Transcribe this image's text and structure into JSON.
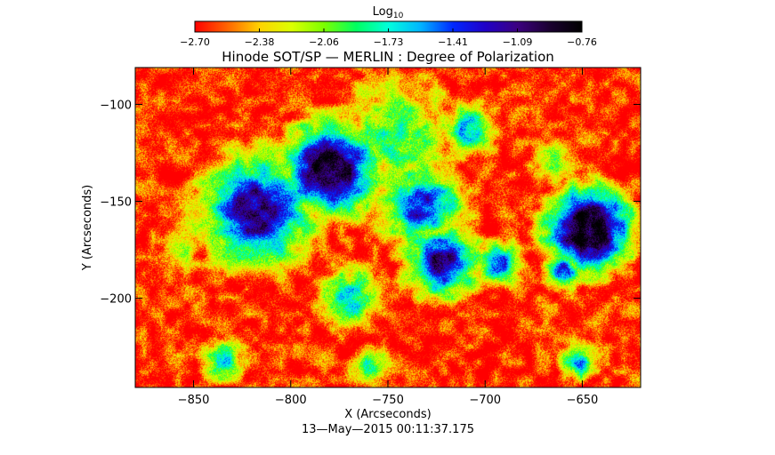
{
  "chart_data": {
    "type": "heatmap",
    "title": "Hinode SOT/SP — MERLIN : Degree of Polarization",
    "xlabel": "X (Arcseconds)",
    "ylabel": "Y (Arcseconds)",
    "timestamp": "13—May—2015 00:11:37.175",
    "xlim": [
      -880,
      -620
    ],
    "ylim": [
      -246,
      -81
    ],
    "xticks": [
      -850,
      -800,
      -750,
      -700,
      -650
    ],
    "yticks": [
      -100,
      -150,
      -200
    ],
    "colorbar": {
      "label": "Log",
      "label_sub": "10",
      "min": -2.7,
      "max": -0.76,
      "tick_labels": [
        "−2.70",
        "−2.38",
        "−2.06",
        "−1.73",
        "−1.41",
        "−1.09",
        "−0.76"
      ],
      "colormap": [
        "#ff0000",
        "#ff6400",
        "#ffd200",
        "#dcff00",
        "#7cff00",
        "#00ff60",
        "#00ffdc",
        "#00b4ff",
        "#0028ff",
        "#2000c8",
        "#3c0080",
        "#1a0030",
        "#000000"
      ]
    },
    "background_level": -2.65,
    "features": [
      {
        "x": -780,
        "y": -133,
        "peak": -0.8,
        "core": 8,
        "halo": 26
      },
      {
        "x": -647,
        "y": -164,
        "peak": -0.8,
        "core": 9,
        "halo": 22
      },
      {
        "x": -722,
        "y": -181,
        "peak": -1.05,
        "core": 5,
        "halo": 22
      },
      {
        "x": -818,
        "y": -155,
        "peak": -1.1,
        "core": 10,
        "halo": 30
      },
      {
        "x": -733,
        "y": -152,
        "peak": -1.3,
        "core": 6,
        "halo": 24
      },
      {
        "x": -745,
        "y": -115,
        "peak": -1.9,
        "core": 10,
        "halo": 28
      },
      {
        "x": -660,
        "y": -186,
        "peak": -1.35,
        "core": 3,
        "halo": 10
      },
      {
        "x": -693,
        "y": -182,
        "peak": -1.5,
        "core": 4,
        "halo": 12
      },
      {
        "x": -708,
        "y": -113,
        "peak": -1.7,
        "core": 5,
        "halo": 14
      },
      {
        "x": -770,
        "y": -200,
        "peak": -1.8,
        "core": 6,
        "halo": 16
      },
      {
        "x": -652,
        "y": -232,
        "peak": -1.6,
        "core": 3,
        "halo": 10
      },
      {
        "x": -665,
        "y": -130,
        "peak": -2.1,
        "core": 4,
        "halo": 12
      },
      {
        "x": -835,
        "y": -232,
        "peak": -1.7,
        "core": 3,
        "halo": 12
      },
      {
        "x": -760,
        "y": -235,
        "peak": -1.8,
        "core": 3,
        "halo": 10
      },
      {
        "x": -856,
        "y": -175,
        "peak": -2.1,
        "core": 3,
        "halo": 10
      }
    ]
  }
}
